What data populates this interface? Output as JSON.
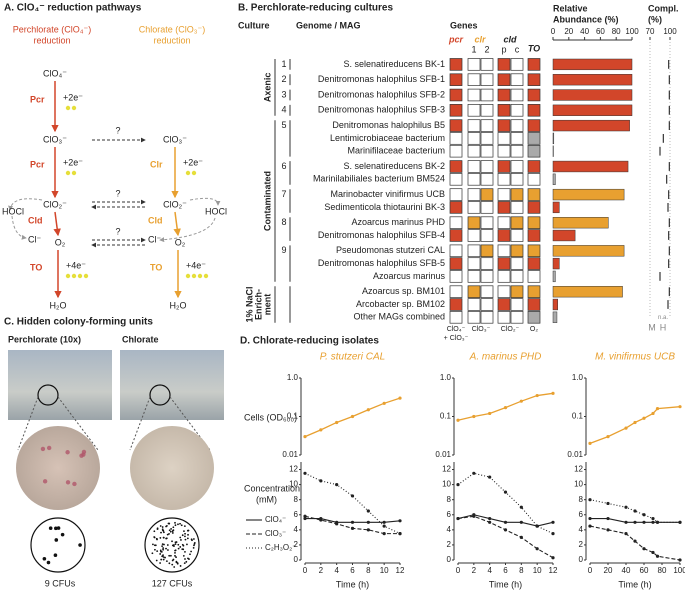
{
  "panel_a": {
    "title": "A. ClO₄⁻ reduction pathways",
    "perchlorate_header": [
      "Perchlorate (ClO₄⁻)",
      "reduction"
    ],
    "chlorate_header": [
      "Chlorate (ClO₃⁻)",
      "reduction"
    ],
    "labels": {
      "clo4": "ClO₄⁻",
      "clo3": "ClO₃⁻",
      "clo2": "ClO₂⁻",
      "o2": "O₂",
      "cl": "Cl⁻",
      "h2o": "H₂O",
      "hocl": "HOCl",
      "pcr": "Pcr",
      "clr": "Clr",
      "cld": "Cld",
      "to": "TO",
      "e2": "+2e⁻",
      "e4": "+4e⁻",
      "q": "?"
    }
  },
  "panel_b": {
    "title": "B. Perchlorate-reducing cultures",
    "culture_header": "Culture",
    "genome_header": "Genome / MAG",
    "genes_header": "Genes",
    "gene_labels": {
      "pcr": "pcr",
      "clr": "clr",
      "cld": "cld",
      "to": "TO",
      "clr1": "1",
      "clr2": "2",
      "cldp": "p",
      "cldc": "c"
    },
    "substrates": {
      "pcr": [
        "ClO₄⁻",
        "+ ClO₃⁻"
      ],
      "clr": "ClO₃⁻",
      "cld": "ClO₂⁻",
      "to": "O₂"
    },
    "abundance_header": [
      "Relative",
      "Abundance (%)"
    ],
    "xlim": [
      0,
      100
    ],
    "xticks": [
      0,
      20,
      40,
      60,
      80,
      100
    ],
    "compl_header": [
      "Compl.",
      "(%)"
    ],
    "compl_lim": [
      70,
      100
    ],
    "compl_ticks": [
      70,
      100
    ],
    "compl_marks": [
      "M",
      "H"
    ],
    "na_label": "n.a.",
    "colors": {
      "p": "#d2462a",
      "o": "#e8a030",
      "g": "#aaaaaa"
    },
    "groups": [
      {
        "label": [
          "Axenic"
        ]
      },
      {
        "label": [
          "Contaminated"
        ]
      },
      {
        "label": [
          "1% NaCl",
          "Enrich-",
          "ment"
        ]
      }
    ],
    "rows": [
      {
        "group": 0,
        "culture": "1",
        "name": "S. selenatireducens BK-1",
        "kind": "p",
        "genes": [
          "p",
          "",
          "",
          "p",
          "",
          "p"
        ],
        "abundance": 100,
        "completeness": 98
      },
      {
        "group": 0,
        "culture": "2",
        "name": "Denitromonas halophilus SFB-1",
        "kind": "p",
        "genes": [
          "p",
          "",
          "",
          "p",
          "",
          "p"
        ],
        "abundance": 100,
        "completeness": 99
      },
      {
        "group": 0,
        "culture": "3",
        "name": "Denitromonas halophilus SFB-2",
        "kind": "p",
        "genes": [
          "p",
          "",
          "",
          "p",
          "",
          "p"
        ],
        "abundance": 100,
        "completeness": 99
      },
      {
        "group": 0,
        "culture": "4",
        "name": "Denitromonas halophilus SFB-3",
        "kind": "p",
        "genes": [
          "p",
          "",
          "",
          "p",
          "",
          "p"
        ],
        "abundance": 100,
        "completeness": 99
      },
      {
        "group": 1,
        "culture": "5",
        "name": "Denitromonas halophilus B5",
        "kind": "p",
        "genes": [
          "p",
          "",
          "",
          "p",
          "",
          "p"
        ],
        "abundance": 97,
        "completeness": 99
      },
      {
        "group": 1,
        "culture": null,
        "name": "Lentimicrobiaceae bacterium",
        "kind": "g",
        "genes": [
          "",
          "",
          "",
          "",
          "",
          "g"
        ],
        "abundance": 1,
        "completeness": 90
      },
      {
        "group": 1,
        "culture": null,
        "name": "Marinifilaceae bacterium",
        "kind": "g",
        "genes": [
          "",
          "",
          "",
          "",
          "",
          "g"
        ],
        "abundance": 0.5,
        "completeness": 85
      },
      {
        "group": 1,
        "culture": "6",
        "name": "S. selenatireducens BK-2",
        "kind": "p",
        "genes": [
          "p",
          "",
          "",
          "p",
          "",
          "p"
        ],
        "abundance": 95,
        "completeness": 99
      },
      {
        "group": 1,
        "culture": null,
        "name": "Marinilabiliales bacterium BM524",
        "kind": "g",
        "genes": [
          "",
          "",
          "",
          "",
          "",
          ""
        ],
        "abundance": 3,
        "completeness": 95
      },
      {
        "group": 1,
        "culture": "7",
        "name": "Marinobacter vinifirmus UCB",
        "kind": "o",
        "genes": [
          "",
          "",
          "o",
          "",
          "o",
          "o"
        ],
        "abundance": 90,
        "completeness": 98
      },
      {
        "group": 1,
        "culture": null,
        "name": "Sedimenticola thiotaurini BK-3",
        "kind": "p",
        "genes": [
          "p",
          "",
          "",
          "p",
          "",
          "p"
        ],
        "abundance": 8,
        "completeness": 97
      },
      {
        "group": 1,
        "culture": "8",
        "name": "Azoarcus marinus PHD",
        "kind": "o",
        "genes": [
          "",
          "o",
          "",
          "",
          "o",
          "o"
        ],
        "abundance": 70,
        "completeness": 99
      },
      {
        "group": 1,
        "culture": null,
        "name": "Denitromonas halophilus SFB-4",
        "kind": "p",
        "genes": [
          "p",
          "",
          "",
          "p",
          "",
          "p"
        ],
        "abundance": 28,
        "completeness": 98
      },
      {
        "group": 1,
        "culture": "9",
        "name": "Pseudomonas stutzeri CAL",
        "kind": "o",
        "genes": [
          "",
          "",
          "o",
          "",
          "o",
          "o"
        ],
        "abundance": 90,
        "completeness": 99
      },
      {
        "group": 1,
        "culture": null,
        "name": "Denitromonas halophilus SFB-5",
        "kind": "p",
        "genes": [
          "p",
          "",
          "",
          "p",
          "",
          "p"
        ],
        "abundance": 8,
        "completeness": 98
      },
      {
        "group": 1,
        "culture": null,
        "name": "Azoarcus marinus",
        "kind": "g",
        "genes": [
          "",
          "",
          "",
          "",
          "",
          ""
        ],
        "abundance": 3,
        "completeness": 85
      },
      {
        "group": 2,
        "culture": null,
        "name": "Azoarcus sp. BM101",
        "kind": "o",
        "genes": [
          "",
          "o",
          "",
          "",
          "o",
          "o"
        ],
        "abundance": 88,
        "completeness": 99
      },
      {
        "group": 2,
        "culture": null,
        "name": "Arcobacter sp. BM102",
        "kind": "p",
        "genes": [
          "p",
          "",
          "",
          "p",
          "",
          "p"
        ],
        "abundance": 6,
        "completeness": 97
      },
      {
        "group": 2,
        "culture": null,
        "name": "Other MAGs combined",
        "kind": "g",
        "genes": [
          "",
          "",
          "",
          "",
          "",
          "g"
        ],
        "abundance": 5,
        "completeness": null
      }
    ]
  },
  "panel_c": {
    "title": "C. Hidden colony-forming units",
    "headers": [
      "Perchlorate (10x)",
      "Chlorate"
    ],
    "colonies": [
      9,
      127
    ],
    "colony_labels": [
      "9 CFUs",
      "127 CFUs"
    ]
  },
  "panel_d": {
    "title": "D. Chlorate-reducing isolates",
    "cells_label": "Cells (OD₆₀₀)",
    "conc_label": [
      "Concentration",
      "(mM)"
    ],
    "xlabel": "Time (h)",
    "legend": [
      "ClO₄⁻",
      "ClO₃⁻",
      "C₂H₃O₂⁻"
    ],
    "dashes": [
      "none",
      "4 2",
      "1 2"
    ],
    "line_color": "#222222",
    "cells_color": "#e8a030",
    "cells_ylim": [
      0.01,
      1
    ],
    "cells_yticks": [
      0.01,
      0.1,
      {
        "value": 1,
        "label": "1.0"
      }
    ],
    "log": true,
    "conc_ylim": [
      0,
      13
    ],
    "conc_yticks": [
      0,
      2,
      4,
      6,
      8,
      10,
      12
    ],
    "plots": [
      {
        "title": "P. stutzeri CAL",
        "x": [
          0,
          2,
          4,
          6,
          8,
          10,
          12
        ],
        "xlim": [
          0,
          12
        ],
        "xticks": [
          0,
          2,
          4,
          6,
          8,
          10,
          12
        ],
        "cells": [
          0.03,
          0.045,
          0.07,
          0.1,
          0.15,
          0.22,
          0.3
        ],
        "conc": [
          [
            5.5,
            5.5,
            5,
            5,
            5,
            5,
            5.2
          ],
          [
            5.8,
            5.3,
            4.8,
            4.2,
            4,
            3.5,
            3.5
          ],
          [
            11.5,
            10.5,
            10,
            8.5,
            6.5,
            4.5,
            3.5
          ]
        ]
      },
      {
        "title": "A. marinus PHD",
        "x": [
          0,
          2,
          4,
          6,
          8,
          10,
          12
        ],
        "xlim": [
          0,
          12
        ],
        "xticks": [
          0,
          2,
          4,
          6,
          8,
          10,
          12
        ],
        "cells": [
          0.08,
          0.1,
          0.12,
          0.17,
          0.25,
          0.35,
          0.4
        ],
        "conc": [
          [
            5.5,
            6,
            5.5,
            5,
            5,
            4.5,
            5
          ],
          [
            5.5,
            5.8,
            5,
            4,
            3,
            1.5,
            0.3
          ],
          [
            10,
            11.5,
            11,
            9,
            7,
            4.5,
            3.5
          ]
        ]
      },
      {
        "title": "M. vinifirmus UCB",
        "x": [
          0,
          20,
          40,
          50,
          60,
          70,
          75,
          100
        ],
        "xlim": [
          0,
          100
        ],
        "xticks": [
          0,
          20,
          40,
          60,
          80,
          100
        ],
        "cells": [
          0.02,
          0.03,
          0.05,
          0.07,
          0.09,
          0.12,
          0.16,
          0.18
        ],
        "conc": [
          [
            5.5,
            5.5,
            5,
            5,
            5,
            5,
            5,
            5
          ],
          [
            4.5,
            4,
            3.5,
            2.5,
            1.5,
            1,
            0.5,
            0
          ],
          [
            8,
            7.5,
            7,
            6.5,
            6,
            5.5,
            5,
            5
          ]
        ]
      }
    ]
  }
}
